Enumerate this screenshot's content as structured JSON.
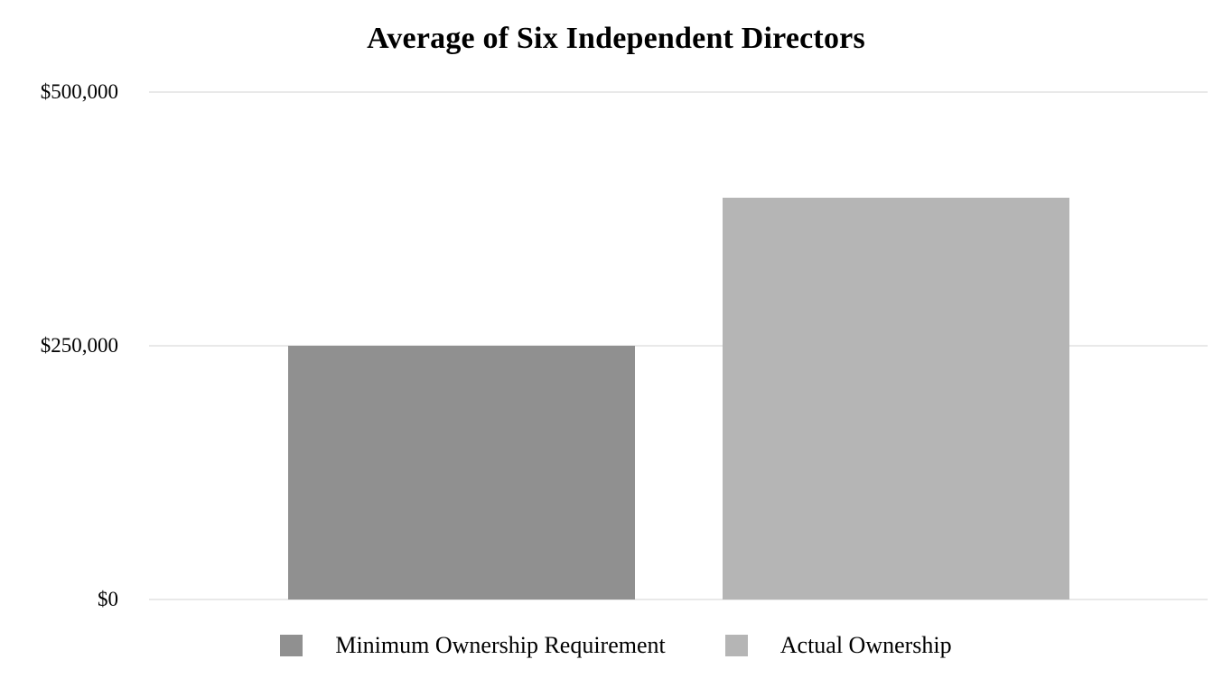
{
  "chart_data": {
    "type": "bar",
    "title": "Average of Six Independent Directors",
    "categories": [
      "Minimum Ownership Requirement",
      "Actual Ownership"
    ],
    "values": [
      250000,
      396000
    ],
    "bar_colors": [
      "#909090",
      "#b5b5b5"
    ],
    "xlabel": "",
    "ylabel": "",
    "ylim": [
      0,
      500000
    ],
    "yticks": [
      {
        "label": "$0",
        "value": 0
      },
      {
        "label": "$250,000",
        "value": 250000
      },
      {
        "label": "$500,000",
        "value": 500000
      }
    ],
    "grid": true,
    "gridline_color": "#e9e9e9",
    "background": "#ffffff",
    "legend_position": "bottom",
    "legend": [
      {
        "label": "Minimum Ownership Requirement",
        "color": "#909090"
      },
      {
        "label": "Actual Ownership",
        "color": "#b5b5b5"
      }
    ]
  }
}
